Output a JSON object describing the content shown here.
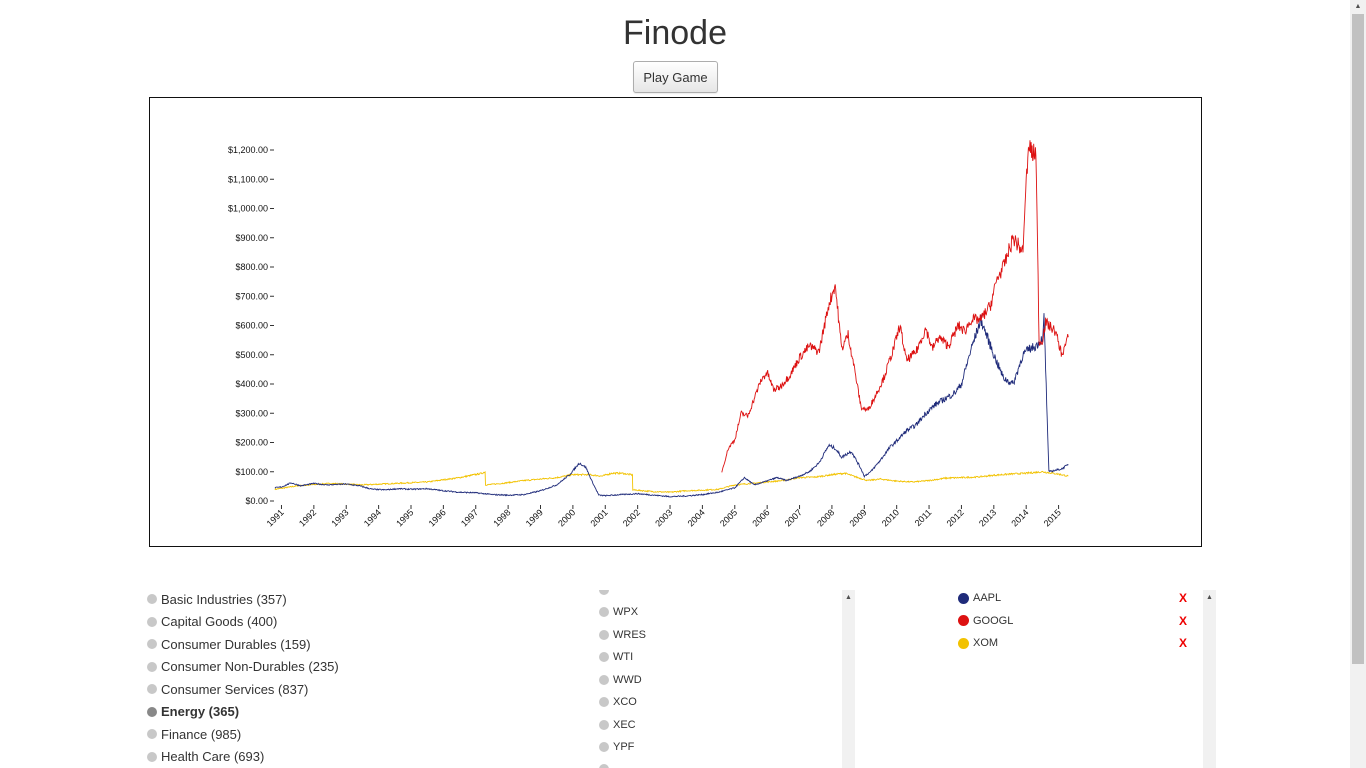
{
  "app": {
    "title": "Finode",
    "play_button": "Play Game"
  },
  "chart_data": {
    "type": "line",
    "title": "",
    "xlabel": "",
    "ylabel": "",
    "x_range": [
      1990.8,
      2015.6
    ],
    "ylim": [
      0,
      1200
    ],
    "y_ticks": [
      {
        "value": 0,
        "label": "$0.00"
      },
      {
        "value": 100,
        "label": "$100.00"
      },
      {
        "value": 200,
        "label": "$200.00"
      },
      {
        "value": 300,
        "label": "$300.00"
      },
      {
        "value": 400,
        "label": "$400.00"
      },
      {
        "value": 500,
        "label": "$500.00"
      },
      {
        "value": 600,
        "label": "$600.00"
      },
      {
        "value": 700,
        "label": "$700.00"
      },
      {
        "value": 800,
        "label": "$800.00"
      },
      {
        "value": 900,
        "label": "$900.00"
      },
      {
        "value": 1000,
        "label": "$1,000.00"
      },
      {
        "value": 1100,
        "label": "$1,100.00"
      },
      {
        "value": 1200,
        "label": "$1,200.00"
      }
    ],
    "x_ticks": [
      "1991",
      "1992",
      "1993",
      "1994",
      "1995",
      "1996",
      "1997",
      "1998",
      "1999",
      "2000",
      "2001",
      "2002",
      "2003",
      "2004",
      "2005",
      "2006",
      "2007",
      "2008",
      "2009",
      "2010",
      "2011",
      "2012",
      "2013",
      "2014",
      "2015"
    ],
    "grid": false,
    "series": [
      {
        "name": "AAPL",
        "color": "#1f2b7a",
        "x": [
          1990.8,
          1991.0,
          1991.3,
          1991.6,
          1992.0,
          1992.4,
          1993.0,
          1993.4,
          1993.8,
          1994.2,
          1994.6,
          1995.0,
          1995.5,
          1996.0,
          1996.5,
          1997.0,
          1997.5,
          1998.0,
          1998.5,
          1999.0,
          1999.5,
          1999.9,
          2000.2,
          2000.4,
          2000.6,
          2000.8,
          2001.0,
          2001.5,
          2002.0,
          2002.5,
          2003.0,
          2003.5,
          2004.0,
          2004.5,
          2005.0,
          2005.3,
          2005.6,
          2005.9,
          2006.3,
          2006.6,
          2007.0,
          2007.3,
          2007.6,
          2007.9,
          2008.1,
          2008.3,
          2008.6,
          2008.9,
          2009.0,
          2009.2,
          2009.5,
          2009.8,
          2010.0,
          2010.3,
          2010.6,
          2010.9,
          2011.2,
          2011.5,
          2011.8,
          2012.0,
          2012.3,
          2012.6,
          2012.8,
          2013.0,
          2013.3,
          2013.6,
          2013.9,
          2014.1,
          2014.3,
          2014.45,
          2014.52,
          2014.55,
          2014.7,
          2014.9,
          2015.1,
          2015.3
        ],
        "y": [
          45,
          48,
          62,
          52,
          60,
          55,
          58,
          52,
          40,
          38,
          42,
          40,
          42,
          35,
          30,
          28,
          22,
          20,
          22,
          35,
          55,
          90,
          130,
          115,
          65,
          20,
          18,
          22,
          25,
          20,
          15,
          17,
          22,
          30,
          45,
          80,
          55,
          65,
          80,
          70,
          85,
          100,
          130,
          190,
          180,
          150,
          170,
          110,
          85,
          100,
          140,
          185,
          205,
          240,
          260,
          300,
          330,
          350,
          370,
          400,
          520,
          620,
          560,
          500,
          420,
          400,
          500,
          520,
          530,
          550,
          560,
          630,
          100,
          105,
          110,
          125
        ]
      },
      {
        "name": "GOOGL",
        "color": "#dd1111",
        "x": [
          2004.6,
          2004.8,
          2005.0,
          2005.2,
          2005.4,
          2005.6,
          2005.8,
          2006.0,
          2006.2,
          2006.4,
          2006.7,
          2007.0,
          2007.3,
          2007.6,
          2007.9,
          2008.1,
          2008.3,
          2008.5,
          2008.7,
          2008.9,
          2009.1,
          2009.3,
          2009.6,
          2009.9,
          2010.1,
          2010.3,
          2010.6,
          2010.9,
          2011.1,
          2011.3,
          2011.6,
          2011.9,
          2012.1,
          2012.3,
          2012.6,
          2012.9,
          2013.1,
          2013.3,
          2013.6,
          2013.9,
          2014.0,
          2014.1,
          2014.2,
          2014.3,
          2014.4,
          2014.5,
          2014.6,
          2014.9,
          2015.1,
          2015.3
        ],
        "y": [
          100,
          180,
          210,
          300,
          290,
          350,
          410,
          440,
          380,
          390,
          430,
          490,
          530,
          510,
          670,
          740,
          520,
          570,
          450,
          320,
          310,
          350,
          420,
          520,
          600,
          480,
          510,
          590,
          520,
          560,
          530,
          600,
          580,
          620,
          620,
          670,
          760,
          800,
          900,
          850,
          1100,
          1220,
          1180,
          1200,
          540,
          550,
          610,
          580,
          500,
          560
        ]
      },
      {
        "name": "XOM",
        "color": "#f2c200",
        "x": [
          1990.8,
          1991.5,
          1992.5,
          1993.5,
          1994.5,
          1995.5,
          1996.5,
          1997.2,
          1997.29,
          1997.3,
          1997.8,
          1998.5,
          1999.5,
          2000.0,
          2000.5,
          2000.9,
          2001.2,
          2001.5,
          2001.8,
          2001.84,
          2001.85,
          2002.5,
          2003.0,
          2003.5,
          2004.0,
          2004.5,
          2005.0,
          2005.5,
          2006.0,
          2006.5,
          2007.0,
          2007.5,
          2008.0,
          2008.4,
          2008.8,
          2009.1,
          2009.5,
          2010.0,
          2010.5,
          2011.0,
          2011.5,
          2012.0,
          2012.5,
          2013.0,
          2013.5,
          2014.0,
          2014.5,
          2015.0,
          2015.3
        ],
        "y": [
          40,
          52,
          60,
          55,
          60,
          65,
          80,
          95,
          100,
          55,
          60,
          70,
          80,
          90,
          90,
          85,
          95,
          95,
          90,
          88,
          38,
          32,
          30,
          35,
          37,
          40,
          55,
          60,
          65,
          70,
          80,
          82,
          90,
          95,
          80,
          70,
          75,
          68,
          65,
          70,
          78,
          80,
          82,
          88,
          92,
          95,
          100,
          92,
          85
        ]
      }
    ]
  },
  "sectors": [
    {
      "label": "Basic Industries (357)",
      "active": false
    },
    {
      "label": "Capital Goods (400)",
      "active": false
    },
    {
      "label": "Consumer Durables (159)",
      "active": false
    },
    {
      "label": "Consumer Non-Durables (235)",
      "active": false
    },
    {
      "label": "Consumer Services (837)",
      "active": false
    },
    {
      "label": "Energy (365)",
      "active": true
    },
    {
      "label": "Finance (985)",
      "active": false
    },
    {
      "label": "Health Care (693)",
      "active": false
    }
  ],
  "tickers": [
    "WPX",
    "WRES",
    "WTI",
    "WWD",
    "XCO",
    "XEC",
    "YPF"
  ],
  "selected": [
    {
      "symbol": "AAPL",
      "color": "#1f2b7a",
      "remove": "X"
    },
    {
      "symbol": "GOOGL",
      "color": "#dd1111",
      "remove": "X"
    },
    {
      "symbol": "XOM",
      "color": "#f2c200",
      "remove": "X"
    }
  ]
}
